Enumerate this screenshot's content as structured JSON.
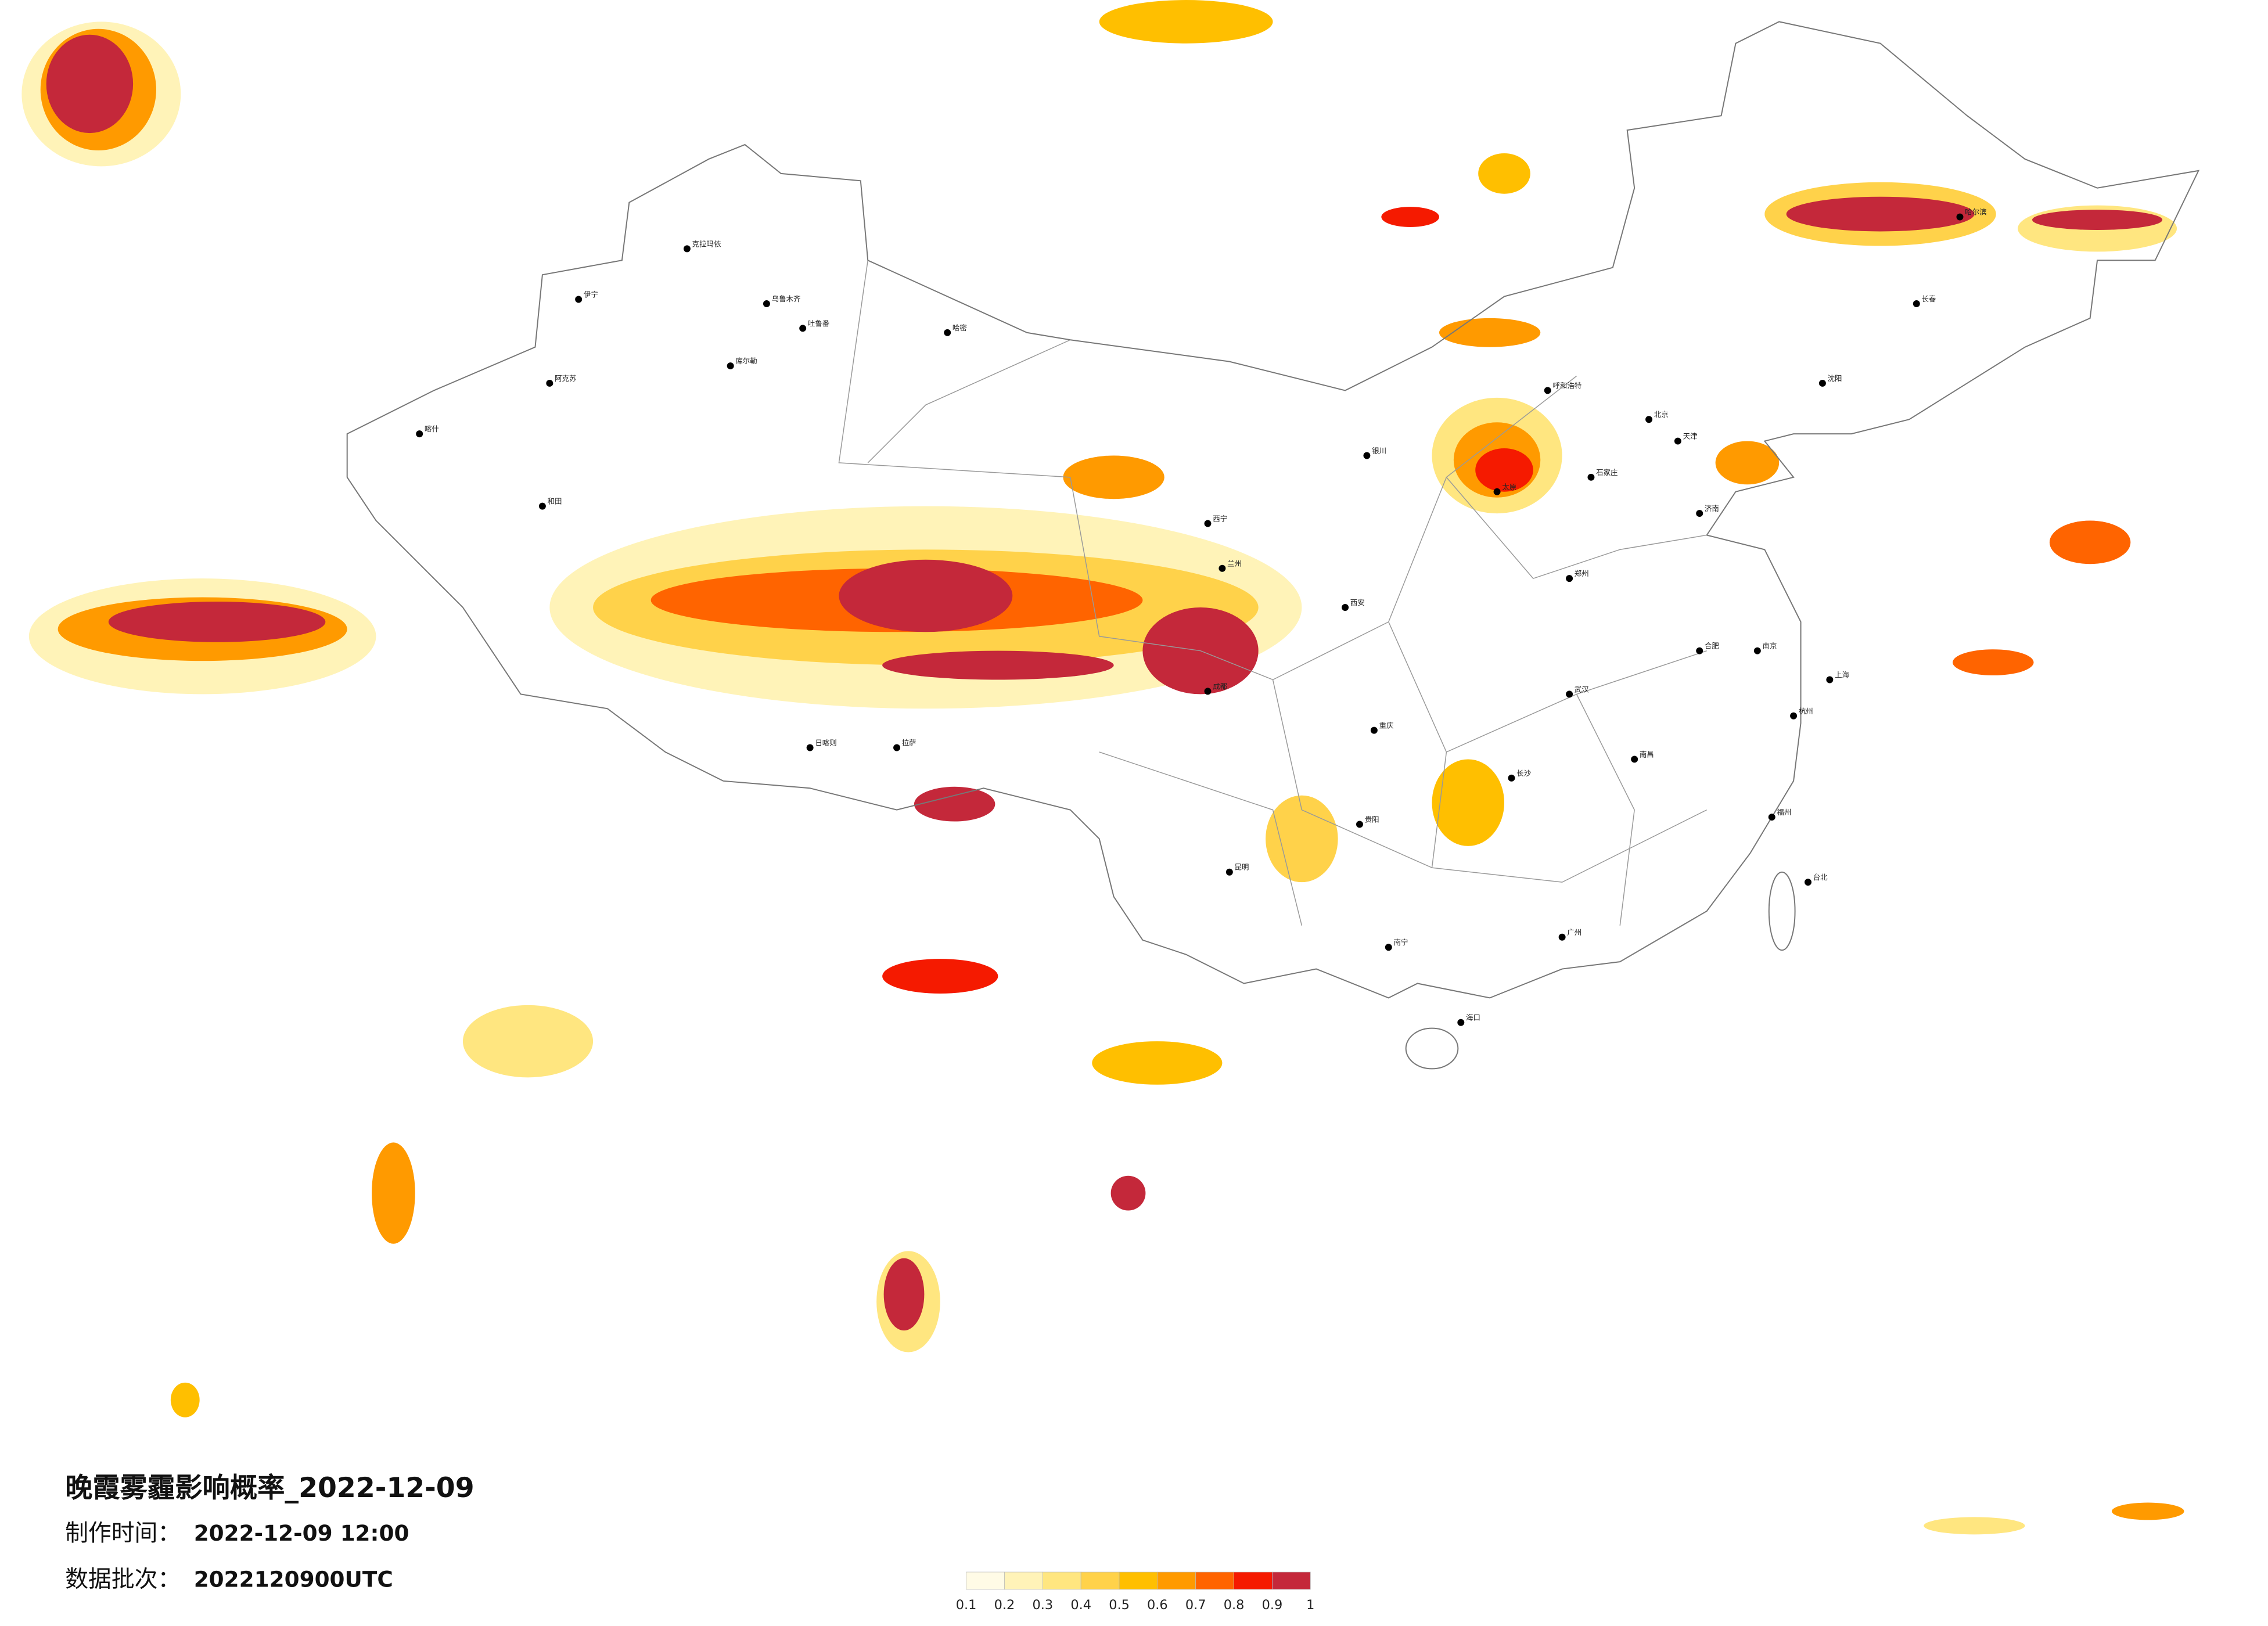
{
  "title": "晚霞雾霾影响概率_2022-12-09",
  "meta": [
    {
      "label": "制作时间：",
      "value": "2022-12-09 12:00"
    },
    {
      "label": "数据批次：",
      "value": "2022120900UTC"
    }
  ],
  "legend": {
    "levels": [
      0.1,
      0.2,
      0.3,
      0.4,
      0.5,
      0.6,
      0.7,
      0.8,
      0.9,
      1
    ],
    "colors": [
      "#fffbe6",
      "#fff3b8",
      "#ffe680",
      "#ffd24a",
      "#ffbf00",
      "#ff9a00",
      "#ff6400",
      "#f51a00",
      "#c4283a"
    ]
  },
  "cities": [
    "克拉玛依",
    "伊宁",
    "乌鲁木齐",
    "吐鲁番",
    "哈密",
    "库尔勒",
    "阿克苏",
    "喀什",
    "和田",
    "拉萨",
    "日喀则",
    "西宁",
    "兰州",
    "成都",
    "昆明",
    "贵阳",
    "南宁",
    "海口",
    "广州",
    "长沙",
    "武汉",
    "西安",
    "郑州",
    "北京",
    "天津",
    "石家庄",
    "太原",
    "呼和浩特",
    "沈阳",
    "长春",
    "哈尔滨",
    "济南",
    "南京",
    "上海",
    "杭州",
    "福州",
    "台北",
    "南昌",
    "合肥",
    "重庆",
    "银川"
  ]
}
